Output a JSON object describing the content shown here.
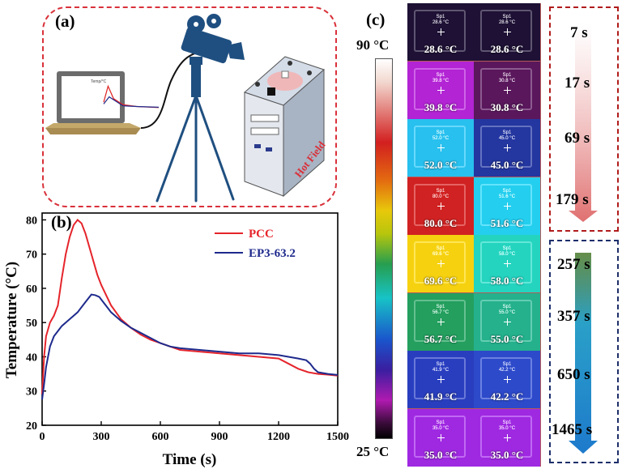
{
  "panels": {
    "a": "(a)",
    "b": "(b)",
    "c": "(c)"
  },
  "hot_field_label": "Hot Field",
  "laptop_screen": {
    "label": "Temp/°C",
    "series": [
      {
        "color": "#e02020",
        "points": [
          [
            0,
            0.45
          ],
          [
            0.08,
            0.9
          ],
          [
            0.18,
            0.55
          ],
          [
            0.35,
            0.38
          ],
          [
            0.6,
            0.33
          ],
          [
            1,
            0.3
          ]
        ]
      },
      {
        "color": "#1e2a8c",
        "points": [
          [
            0,
            0.4
          ],
          [
            0.1,
            0.6
          ],
          [
            0.2,
            0.5
          ],
          [
            0.35,
            0.35
          ],
          [
            0.6,
            0.33
          ],
          [
            1,
            0.31
          ]
        ]
      }
    ]
  },
  "color_scale": {
    "max_label": "90 °C",
    "min_label": "25 °C"
  },
  "thermal_grid": {
    "spot_label": "Sp1",
    "rows": [
      {
        "time": "7 s",
        "cells": [
          {
            "temp": "28.6 °C",
            "small": "28.6 °C",
            "color": "#1a0f2e"
          },
          {
            "temp": "28.6 °C",
            "small": "28.6 °C",
            "color": "#1a0f2e"
          }
        ]
      },
      {
        "time": "17 s",
        "cells": [
          {
            "temp": "39.8 °C",
            "small": "39.8 °C",
            "color": "#9b1fb8"
          },
          {
            "temp": "30.8 °C",
            "small": "30.8 °C",
            "color": "#4e1450"
          }
        ]
      },
      {
        "time": "69 s",
        "cells": [
          {
            "temp": "52.0 °C",
            "small": "52.0 °C",
            "color": "#23a7cf"
          },
          {
            "temp": "45.0 °C",
            "small": "45.0 °C",
            "color": "#1f2f8a"
          }
        ]
      },
      {
        "time": "179 s",
        "cells": [
          {
            "temp": "80.0 °C",
            "small": "80.0 °C",
            "color": "#b51e1e"
          },
          {
            "temp": "51.6 °C",
            "small": "51.6 °C",
            "color": "#1fb3cf"
          }
        ]
      },
      {
        "time": "257 s",
        "cells": [
          {
            "temp": "69.6 °C",
            "small": "69.6 °C",
            "color": "#d6b60e"
          },
          {
            "temp": "58.0 °C",
            "small": "58.0 °C",
            "color": "#1fb8a6"
          }
        ]
      },
      {
        "time": "357 s",
        "cells": [
          {
            "temp": "56.7 °C",
            "small": "56.7 °C",
            "color": "#1f8a52"
          },
          {
            "temp": "55.0 °C",
            "small": "55.0 °C",
            "color": "#1f9a7a"
          }
        ]
      },
      {
        "time": "650 s",
        "cells": [
          {
            "temp": "41.9 °C",
            "small": "41.9 °C",
            "color": "#2436a6"
          },
          {
            "temp": "42.2 °C",
            "small": "42.2 °C",
            "color": "#2740b0"
          }
        ]
      },
      {
        "time": "1465 s",
        "cells": [
          {
            "temp": "35.0 °C",
            "small": "35.0 °C",
            "color": "#8a24c4"
          },
          {
            "temp": "35.0 °C",
            "small": "35.0 °C",
            "color": "#8a24c4"
          }
        ]
      }
    ]
  },
  "time_groups": [
    {
      "border_color": "#b01c1c",
      "arrow_color": "#e07070",
      "rows": [
        0,
        1,
        2,
        3
      ]
    },
    {
      "border_color": "#1e2f6b",
      "arrow_color": "#1e7acc",
      "rows": [
        4,
        5,
        6,
        7
      ]
    }
  ],
  "chart_data": {
    "type": "line",
    "xlabel": "Time (s)",
    "ylabel": "Temperature (°C)",
    "xlim": [
      0,
      1500
    ],
    "ylim": [
      20,
      82
    ],
    "xticks": [
      0,
      300,
      600,
      900,
      1200,
      1500
    ],
    "yticks": [
      20,
      30,
      40,
      50,
      60,
      70,
      80
    ],
    "legend_position": "top-right",
    "series": [
      {
        "name": "PCC",
        "color": "#e5242b",
        "x": [
          0,
          10,
          20,
          40,
          60,
          80,
          100,
          120,
          140,
          160,
          180,
          200,
          220,
          240,
          260,
          280,
          300,
          350,
          400,
          450,
          500,
          550,
          600,
          650,
          700,
          800,
          900,
          1000,
          1100,
          1200,
          1250,
          1300,
          1350,
          1400,
          1450,
          1500
        ],
        "y": [
          29,
          40,
          46,
          50,
          52,
          55,
          63,
          70,
          75,
          78.5,
          80,
          79,
          76,
          72,
          68,
          64,
          61,
          55,
          51,
          48.5,
          46.5,
          45,
          44,
          43,
          42,
          41.5,
          41,
          40.5,
          40,
          39.5,
          38,
          36.5,
          35.5,
          35,
          34.8,
          34.5
        ]
      },
      {
        "name": "EP3-63.2",
        "color": "#1e2a8c",
        "x": [
          0,
          10,
          20,
          40,
          60,
          80,
          100,
          140,
          180,
          220,
          250,
          270,
          290,
          310,
          350,
          400,
          450,
          500,
          550,
          600,
          650,
          700,
          800,
          900,
          1000,
          1100,
          1200,
          1250,
          1300,
          1340,
          1360,
          1380,
          1400,
          1450,
          1500
        ],
        "y": [
          27.5,
          32,
          37,
          43,
          46,
          47.5,
          49,
          51,
          53,
          56,
          58.2,
          58,
          57.5,
          56,
          53,
          50.5,
          48.5,
          47,
          45.5,
          44,
          43,
          42.5,
          42,
          41.5,
          41,
          41,
          40.5,
          40,
          39.5,
          39,
          38,
          36.5,
          35.5,
          35,
          34.7
        ]
      }
    ]
  }
}
